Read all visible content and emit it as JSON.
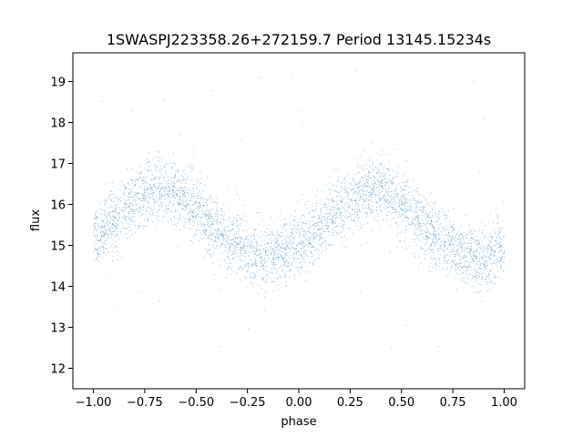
{
  "chart_data": {
    "type": "scatter",
    "title": "1SWASPJ223358.26+272159.7 Period 13145.15234s",
    "xlabel": "phase",
    "ylabel": "flux",
    "xlim": [
      -1.1,
      1.1
    ],
    "ylim": [
      11.5,
      19.7
    ],
    "xticks": [
      -1.0,
      -0.75,
      -0.5,
      -0.25,
      0.0,
      0.25,
      0.5,
      0.75,
      1.0
    ],
    "xtick_labels": [
      "−1.00",
      "−0.75",
      "−0.50",
      "−0.25",
      "0.00",
      "0.25",
      "0.50",
      "0.75",
      "1.00"
    ],
    "yticks": [
      12,
      13,
      14,
      15,
      16,
      17,
      18,
      19
    ],
    "ytick_labels": [
      "12",
      "13",
      "14",
      "15",
      "16",
      "17",
      "18",
      "19"
    ],
    "grid": false,
    "point_color": "#1f77b4",
    "series": [
      {
        "phase_sample": [
          -1.0,
          -0.9,
          -0.8,
          -0.7,
          -0.6,
          -0.5,
          -0.4,
          -0.3,
          -0.2,
          -0.1,
          0.0,
          0.1,
          0.2,
          0.3,
          0.4,
          0.5,
          0.6,
          0.7,
          0.8,
          0.9,
          1.0
        ],
        "flux_sample": [
          15.2,
          15.6,
          16.1,
          16.4,
          16.3,
          15.9,
          15.4,
          15.0,
          14.7,
          14.8,
          15.0,
          15.4,
          15.9,
          16.3,
          16.4,
          16.0,
          15.5,
          15.1,
          14.8,
          14.7,
          15.0
        ],
        "scatter_width": 0.6,
        "num_points": 60000
      }
    ]
  }
}
